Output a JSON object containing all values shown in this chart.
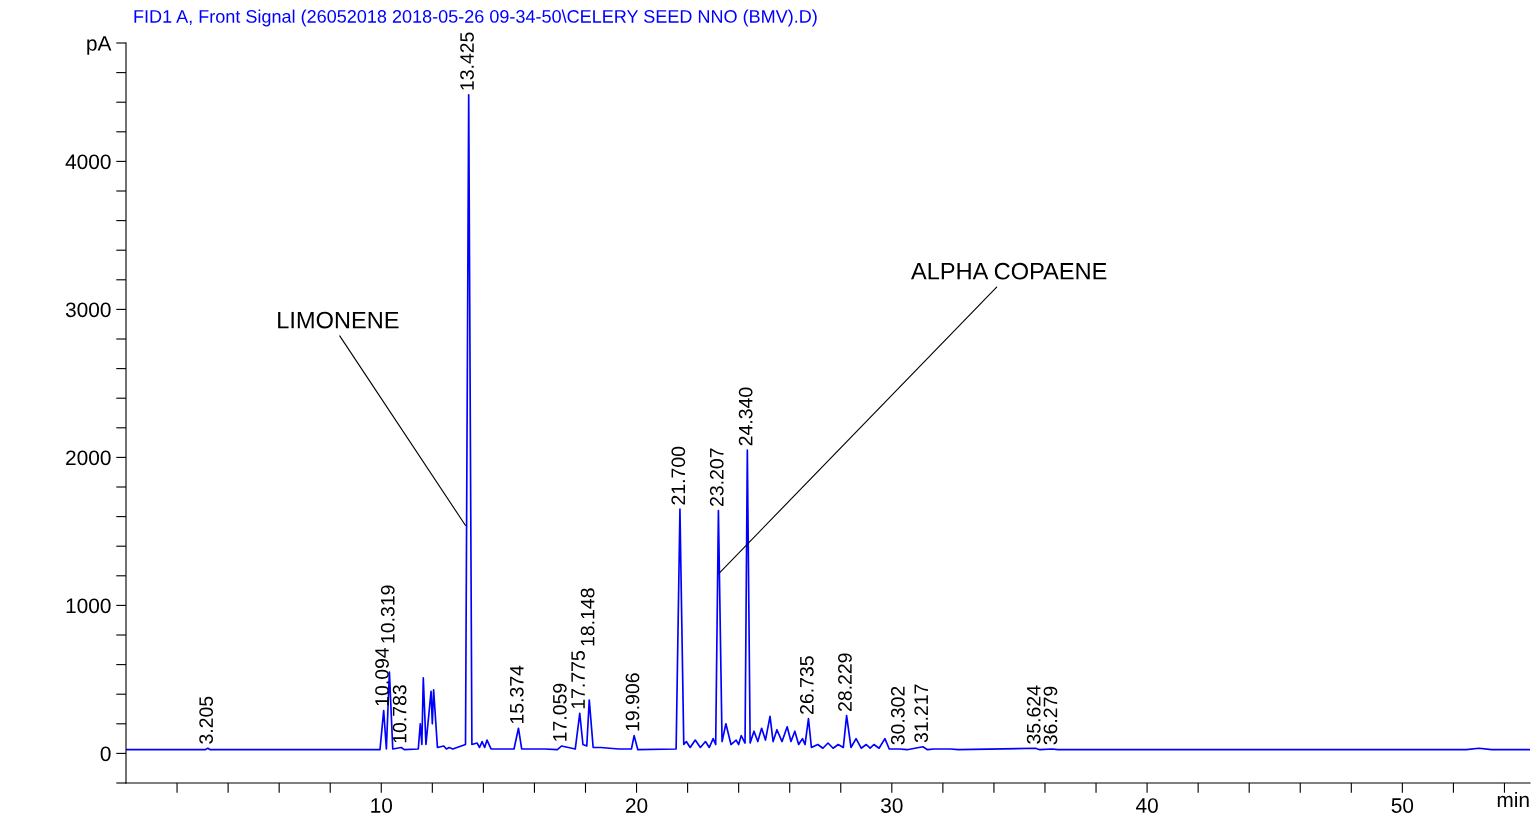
{
  "chart_data": {
    "type": "line",
    "title": "FID1 A, Front Signal (26052018 2018-05-26 09-34-50\\CELERY SEED NNO (BMV).D)",
    "xlabel": "min",
    "series": [
      {
        "color": "#0000ff",
        "x": [
          0,
          3.1,
          3.205,
          3.3,
          9.95,
          10.094,
          10.2,
          10.319,
          10.45,
          10.783,
          10.9,
          11.45,
          11.528,
          11.59,
          11.646,
          11.75,
          11.95,
          12.0,
          12.051,
          12.2,
          12.45,
          12.55,
          12.66,
          12.8,
          13.3,
          13.425,
          13.55,
          13.756,
          13.85,
          13.95,
          14.05,
          14.142,
          14.3,
          14.896,
          15.2,
          15.374,
          15.5,
          15.9,
          16.4,
          16.9,
          17.059,
          17.6,
          17.775,
          17.9,
          18.05,
          18.148,
          18.3,
          18.6,
          19.3,
          19.8,
          19.906,
          20.05,
          21.55,
          21.7,
          21.85,
          21.95,
          22.1,
          22.3,
          22.5,
          22.7,
          22.85,
          23.0,
          23.1,
          23.207,
          23.35,
          23.5,
          23.7,
          23.9,
          24.0,
          24.1,
          24.25,
          24.34,
          24.45,
          24.6,
          24.75,
          24.9,
          25.05,
          25.229,
          25.35,
          25.5,
          25.7,
          25.9,
          26.05,
          26.2,
          26.35,
          26.5,
          26.6,
          26.735,
          26.85,
          27.1,
          27.3,
          27.5,
          27.7,
          27.9,
          28.1,
          28.229,
          28.4,
          28.6,
          28.8,
          29.0,
          29.15,
          29.3,
          29.5,
          29.729,
          29.9,
          30.302,
          30.6,
          31.217,
          31.4,
          31.65,
          32.3,
          32.6,
          35.624,
          35.8,
          36.279,
          36.5,
          52.5,
          53.0,
          53.5,
          55
        ],
        "values": [
          25,
          25,
          35,
          25,
          25,
          290,
          30,
          550,
          30,
          40,
          25,
          30,
          200,
          60,
          510,
          60,
          420,
          200,
          430,
          40,
          50,
          30,
          40,
          30,
          60,
          4450,
          60,
          70,
          40,
          80,
          40,
          90,
          30,
          30,
          30,
          170,
          30,
          30,
          30,
          25,
          50,
          30,
          270,
          60,
          50,
          360,
          40,
          40,
          30,
          30,
          120,
          25,
          30,
          1650,
          60,
          80,
          40,
          90,
          40,
          80,
          40,
          100,
          60,
          1640,
          80,
          200,
          60,
          90,
          60,
          120,
          70,
          2050,
          70,
          150,
          80,
          170,
          90,
          250,
          80,
          160,
          80,
          180,
          80,
          150,
          60,
          100,
          60,
          235,
          40,
          60,
          35,
          70,
          35,
          60,
          40,
          255,
          40,
          100,
          35,
          60,
          35,
          60,
          35,
          100,
          30,
          30,
          25,
          45,
          25,
          30,
          30,
          25,
          35,
          25,
          30,
          25,
          25,
          35,
          25,
          25
        ]
      }
    ],
    "xlim": [
      0,
      55
    ],
    "xticks": [
      {
        "value": 2,
        "label": null
      },
      {
        "value": 4,
        "label": null
      },
      {
        "value": 6,
        "label": null
      },
      {
        "value": 8,
        "label": null
      },
      10,
      {
        "value": 12,
        "label": null
      },
      {
        "value": 14,
        "label": null
      },
      {
        "value": 16,
        "label": null
      },
      {
        "value": 18,
        "label": null
      },
      20,
      {
        "value": 22,
        "label": null
      },
      {
        "value": 24,
        "label": null
      },
      {
        "value": 26,
        "label": null
      },
      {
        "value": 28,
        "label": null
      },
      30,
      {
        "value": 32,
        "label": null
      },
      {
        "value": 34,
        "label": null
      },
      {
        "value": 36,
        "label": null
      },
      {
        "value": 38,
        "label": null
      },
      40,
      {
        "value": 42,
        "label": null
      },
      {
        "value": 44,
        "label": null
      },
      {
        "value": 46,
        "label": null
      },
      {
        "value": 48,
        "label": null
      },
      50,
      {
        "value": 52,
        "label": null
      },
      {
        "value": 54,
        "label": null
      }
    ],
    "ylim": [
      -200,
      4800
    ],
    "yticks": [
      {
        "value": -200,
        "label": null
      },
      0,
      {
        "value": 200,
        "label": null
      },
      {
        "value": 400,
        "label": null
      },
      {
        "value": 600,
        "label": null
      },
      {
        "value": 800,
        "label": null
      },
      1000,
      {
        "value": 1200,
        "label": null
      },
      {
        "value": 1400,
        "label": null
      },
      {
        "value": 1600,
        "label": null
      },
      {
        "value": 1800,
        "label": null
      },
      2000,
      {
        "value": 2200,
        "label": null
      },
      {
        "value": 2400,
        "label": null
      },
      {
        "value": 2600,
        "label": null
      },
      {
        "value": 2800,
        "label": null
      },
      3000,
      {
        "value": 3200,
        "label": null
      },
      {
        "value": 3400,
        "label": null
      },
      {
        "value": 3600,
        "label": null
      },
      {
        "value": 3800,
        "label": null
      },
      4000,
      {
        "value": 4200,
        "label": null
      },
      {
        "value": 4400,
        "label": null
      },
      {
        "value": 4600,
        "label": null
      },
      {
        "value": 4800,
        "label": "pA"
      }
    ],
    "grid": false,
    "annotations": [
      {
        "text": "LIMONENE",
        "x": 13.3,
        "y": 1540
      },
      {
        "text": "ALPHA COPAENE",
        "x": 23.25,
        "y": 1220
      },
      {
        "text": "3.205",
        "x": 3.205,
        "y": 35
      },
      {
        "text": "10.094",
        "x": 10.094,
        "y": 290
      },
      {
        "text": "10.319",
        "x": 10.319,
        "y": 550
      },
      {
        "text": "10.783",
        "x": 10.783,
        "y": 40
      },
      {
        "text": "13.425",
        "x": 13.425,
        "y": 4450
      },
      {
        "text": "15.374",
        "x": 15.374,
        "y": 170
      },
      {
        "text": "17.059",
        "x": 17.059,
        "y": 50
      },
      {
        "text": "17.775",
        "x": 17.775,
        "y": 270
      },
      {
        "text": "18.148",
        "x": 18.148,
        "y": 360
      },
      {
        "text": "19.906",
        "x": 19.906,
        "y": 120
      },
      {
        "text": "21.700",
        "x": 21.7,
        "y": 1650
      },
      {
        "text": "23.207",
        "x": 23.207,
        "y": 1640
      },
      {
        "text": "24.340",
        "x": 24.34,
        "y": 2050
      },
      {
        "text": "26.735",
        "x": 26.735,
        "y": 235
      },
      {
        "text": "28.229",
        "x": 28.229,
        "y": 255
      },
      {
        "text": "30.302",
        "x": 30.302,
        "y": 30
      },
      {
        "text": "31.217",
        "x": 31.217,
        "y": 45
      },
      {
        "text": "35.624",
        "x": 35.624,
        "y": 35
      },
      {
        "text": "36.279",
        "x": 36.279,
        "y": 30
      }
    ]
  }
}
